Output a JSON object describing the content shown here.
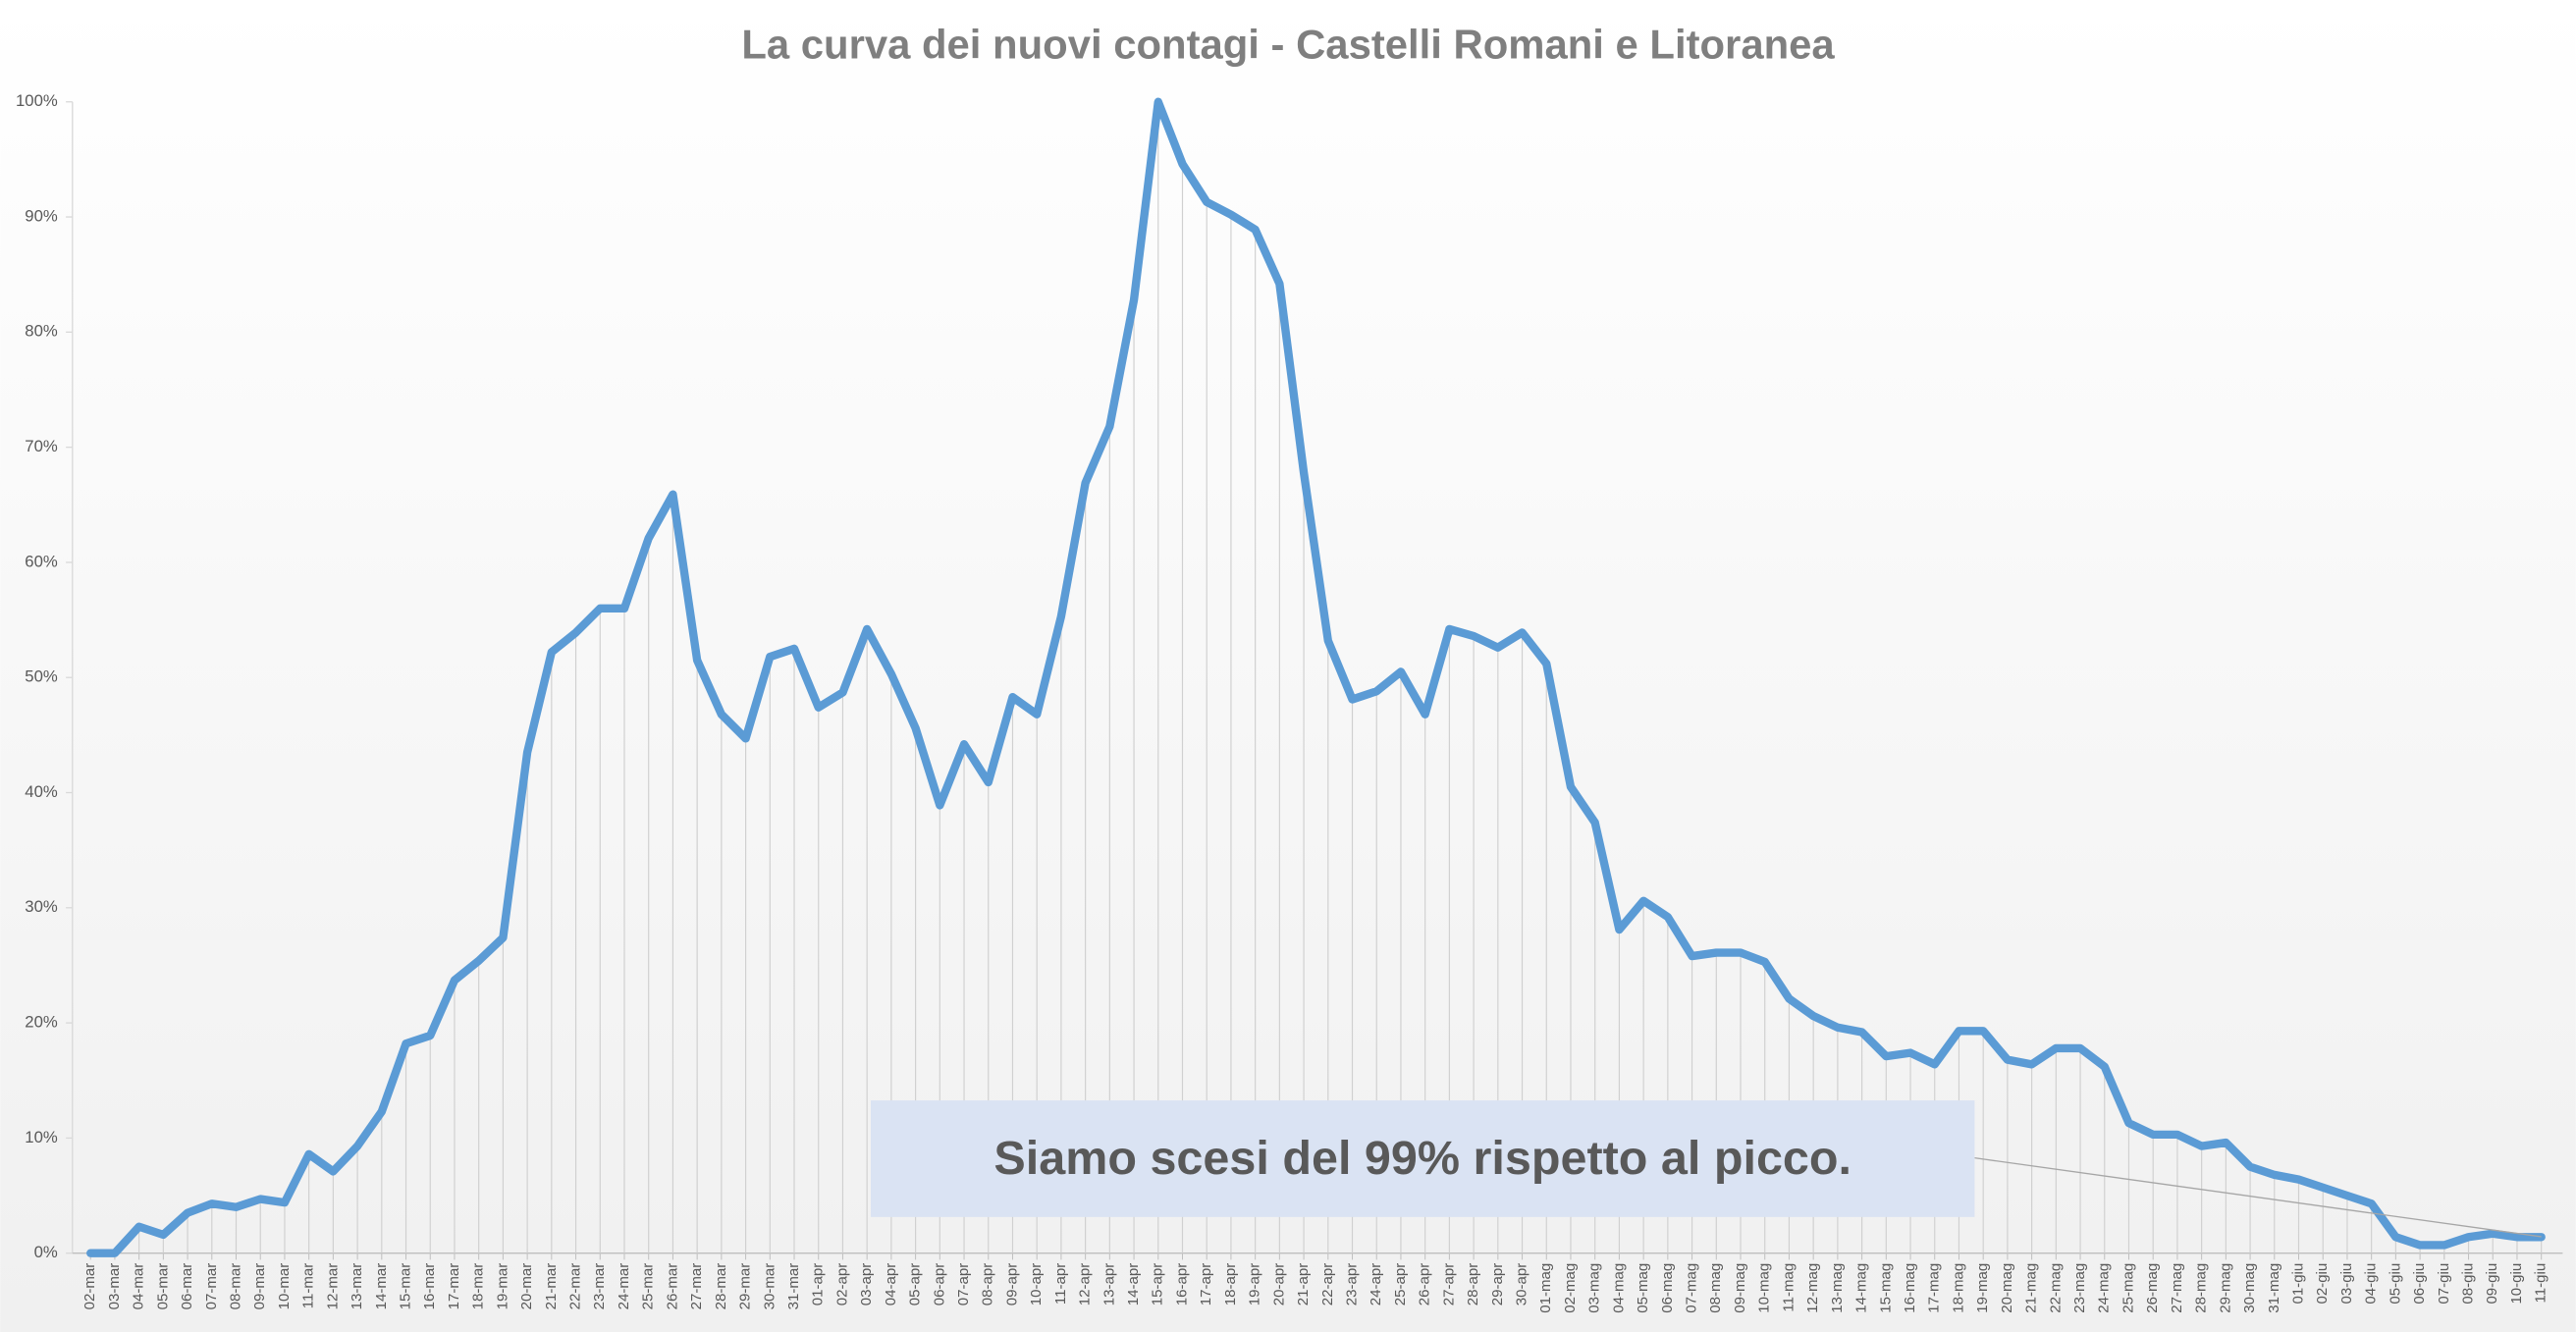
{
  "chart_data": {
    "type": "line",
    "title": "La curva dei nuovi contagi - Castelli Romani e Litoranea",
    "annotation": "Siamo scesi del 99% rispetto al picco.",
    "categories": [
      "02-mar",
      "03-mar",
      "04-mar",
      "05-mar",
      "06-mar",
      "07-mar",
      "08-mar",
      "09-mar",
      "10-mar",
      "11-mar",
      "12-mar",
      "13-mar",
      "14-mar",
      "15-mar",
      "16-mar",
      "17-mar",
      "18-mar",
      "19-mar",
      "20-mar",
      "21-mar",
      "22-mar",
      "23-mar",
      "24-mar",
      "25-mar",
      "26-mar",
      "27-mar",
      "28-mar",
      "29-mar",
      "30-mar",
      "31-mar",
      "01-apr",
      "02-apr",
      "03-apr",
      "04-apr",
      "05-apr",
      "06-apr",
      "07-apr",
      "08-apr",
      "09-apr",
      "10-apr",
      "11-apr",
      "12-apr",
      "13-apr",
      "14-apr",
      "15-apr",
      "16-apr",
      "17-apr",
      "18-apr",
      "19-apr",
      "20-apr",
      "21-apr",
      "22-apr",
      "23-apr",
      "24-apr",
      "25-apr",
      "26-apr",
      "27-apr",
      "28-apr",
      "29-apr",
      "30-apr",
      "01-mag",
      "02-mag",
      "03-mag",
      "04-mag",
      "05-mag",
      "06-mag",
      "07-mag",
      "08-mag",
      "09-mag",
      "10-mag",
      "11-mag",
      "12-mag",
      "13-mag",
      "14-mag",
      "15-mag",
      "16-mag",
      "17-mag",
      "18-mag",
      "19-mag",
      "20-mag",
      "21-mag",
      "22-mag",
      "23-mag",
      "24-mag",
      "25-mag",
      "26-mag",
      "27-mag",
      "28-mag",
      "29-mag",
      "30-mag",
      "31-mag",
      "01-giu",
      "02-giu",
      "03-giu",
      "04-giu",
      "05-giu",
      "06-giu",
      "07-giu",
      "08-giu",
      "09-giu",
      "10-giu",
      "11-giu"
    ],
    "values": [
      0,
      0,
      2.3,
      1.6,
      3.5,
      4.3,
      4.0,
      4.7,
      4.4,
      8.6,
      7.1,
      9.3,
      12.3,
      18.2,
      18.9,
      23.7,
      25.4,
      27.4,
      43.5,
      52.2,
      53.9,
      56.0,
      56.0,
      62.1,
      65.9,
      51.5,
      46.8,
      44.7,
      51.8,
      52.5,
      47.4,
      48.7,
      54.2,
      50.3,
      45.6,
      38.9,
      44.2,
      40.9,
      48.3,
      46.8,
      55.3,
      66.9,
      71.8,
      82.8,
      100,
      94.6,
      91.3,
      90.2,
      88.9,
      84.2,
      67.8,
      53.2,
      48.1,
      48.8,
      50.5,
      46.8,
      54.2,
      53.6,
      52.6,
      53.9,
      51.2,
      40.5,
      37.4,
      28.1,
      30.6,
      29.2,
      25.8,
      26.1,
      26.1,
      25.3,
      22.1,
      20.6,
      19.6,
      19.2,
      17.1,
      17.4,
      16.4,
      19.3,
      19.3,
      16.8,
      16.4,
      17.8,
      17.8,
      16.2,
      11.3,
      10.3,
      10.3,
      9.3,
      9.6,
      7.5,
      6.8,
      6.4,
      5.7,
      5.0,
      4.3,
      1.4,
      0.7,
      0.7,
      1.4,
      1.7,
      1.4,
      1.4
    ],
    "color": "#5b9bd5",
    "ylim": [
      0,
      100
    ],
    "yticks": [
      {
        "value": 0,
        "label": "0%"
      },
      {
        "value": 10,
        "label": "10%"
      },
      {
        "value": 20,
        "label": "20%"
      },
      {
        "value": 30,
        "label": "30%"
      },
      {
        "value": 40,
        "label": "40%"
      },
      {
        "value": 50,
        "label": "50%"
      },
      {
        "value": 60,
        "label": "60%"
      },
      {
        "value": 70,
        "label": "70%"
      },
      {
        "value": 80,
        "label": "80%"
      },
      {
        "value": 90,
        "label": "90%"
      },
      {
        "value": 100,
        "label": "100%"
      }
    ],
    "grid": false,
    "drop_lines": true
  }
}
